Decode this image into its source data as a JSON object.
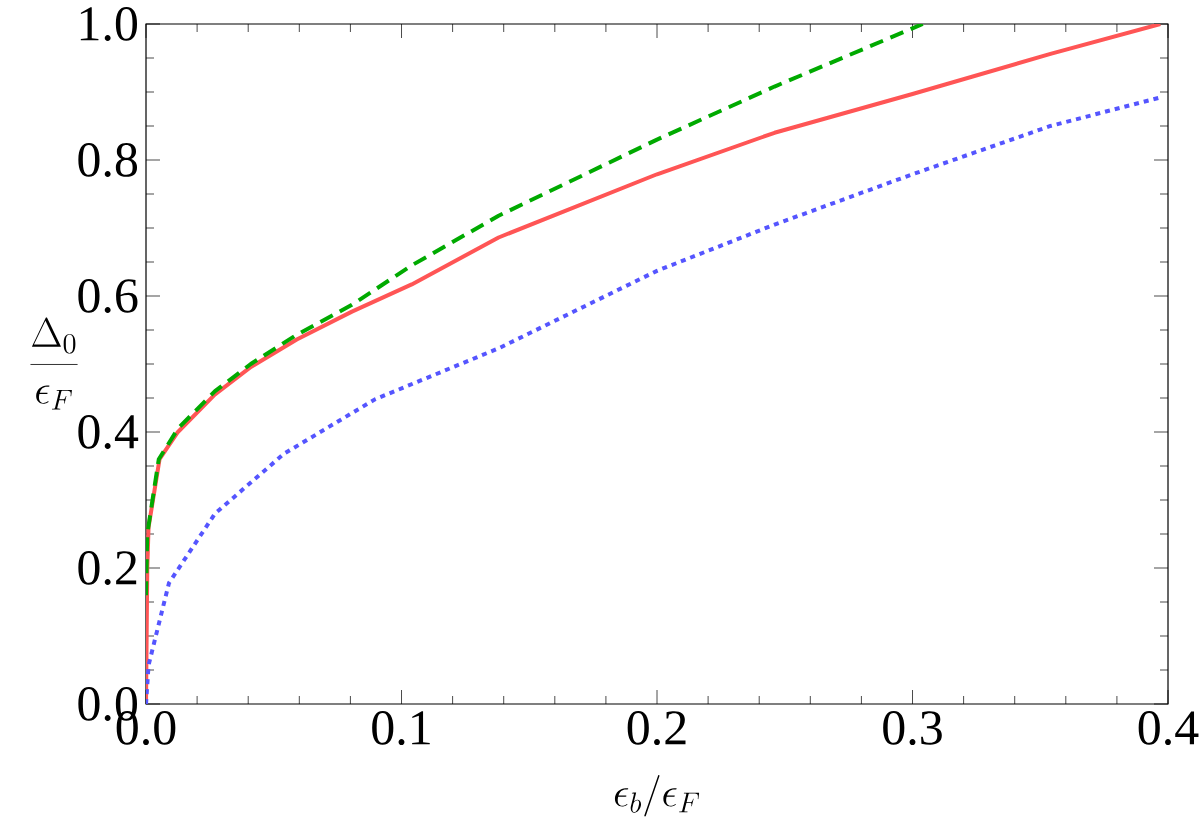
{
  "chart_data": {
    "type": "line",
    "xlabel": "\\epsilon_b/\\epsilon_F",
    "ylabel": "\\frac{\\Delta_0}{\\epsilon_F}",
    "xlim": [
      0,
      0.4
    ],
    "ylim": [
      0,
      1.0
    ],
    "xticks": [
      {
        "value": 0,
        "label": "0.0"
      },
      0.1,
      0.2,
      0.3,
      0.4
    ],
    "yticks": [
      {
        "value": 0,
        "label": "0.0"
      },
      0.2,
      0.4,
      0.6,
      0.8,
      {
        "value": 1,
        "label": "1.0"
      }
    ],
    "series": [
      {
        "color": "#ff5555",
        "line_style": "solid",
        "x": [
          0,
          0.0005,
          0.001,
          0.0053,
          0.0125,
          0.0269,
          0.0412,
          0.059,
          0.0806,
          0.104,
          0.138,
          0.2,
          0.246,
          0.3,
          0.354,
          0.397
        ],
        "values": [
          0,
          0.2,
          0.26,
          0.36,
          0.4,
          0.455,
          0.496,
          0.536,
          0.577,
          0.617,
          0.686,
          0.779,
          0.84,
          0.897,
          0.956,
          1.0
        ]
      },
      {
        "color": "#00aa00",
        "line_style": "dashed",
        "x": [
          0,
          0.0005,
          0.005,
          0.0125,
          0.027,
          0.041,
          0.059,
          0.0806,
          0.104,
          0.138,
          0.2,
          0.246,
          0.304
        ],
        "values": [
          0.16,
          0.25,
          0.36,
          0.405,
          0.46,
          0.5,
          0.543,
          0.587,
          0.645,
          0.718,
          0.83,
          0.908,
          1.0
        ]
      },
      {
        "color": "#5555ff",
        "line_style": "dotted",
        "x": [
          0,
          0.001,
          0.009,
          0.027,
          0.054,
          0.0896,
          0.138,
          0.2,
          0.246,
          0.3,
          0.354,
          0.398
        ],
        "values": [
          0,
          0.057,
          0.178,
          0.28,
          0.368,
          0.448,
          0.523,
          0.637,
          0.705,
          0.779,
          0.85,
          0.893
        ]
      }
    ]
  }
}
